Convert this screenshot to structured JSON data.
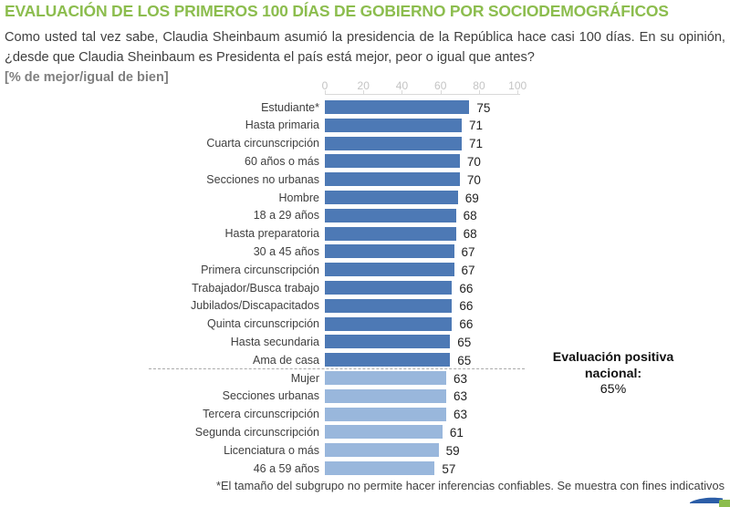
{
  "header": {
    "title": "EVALUACIÓN DE LOS PRIMEROS 100 DÍAS DE GOBIERNO POR SOCIODEMOGRÁFICOS",
    "question": "Como usted tal vez sabe, Claudia Sheinbaum asumió la presidencia de la República hace casi 100 días. En su opinión, ¿desde que Claudia Sheinbaum es Presidenta el país está mejor, peor o igual que antes?",
    "unit_note": "[% de mejor/igual de bien]"
  },
  "chart_data": {
    "type": "bar",
    "orientation": "horizontal",
    "title": "Evaluación de los primeros 100 días de gobierno por sociodemográficos",
    "xlabel": "",
    "ylabel": "",
    "xlim": [
      0,
      100
    ],
    "x_ticks": [
      0,
      20,
      40,
      60,
      80,
      100
    ],
    "grid": false,
    "categories": [
      "Estudiante*",
      "Hasta primaria",
      "Cuarta circunscripción",
      "60 años o más",
      "Secciones no urbanas",
      "Hombre",
      "18 a 29 años",
      "Hasta preparatoria",
      "30 a 45 años",
      "Primera circunscripción",
      "Trabajador/Busca trabajo",
      "Jubilados/Discapacitados",
      "Quinta circunscripción",
      "Hasta secundaria",
      "Ama de casa",
      "Mujer",
      "Secciones urbanas",
      "Tercera circunscripción",
      "Segunda circunscripción",
      "Licenciatura o más",
      "46 a 59 años"
    ],
    "values": [
      75,
      71,
      71,
      70,
      70,
      69,
      68,
      68,
      67,
      67,
      66,
      66,
      66,
      65,
      65,
      63,
      63,
      63,
      61,
      59,
      57
    ],
    "split_index_below_national": 15,
    "colors": {
      "above_or_equal_national": "#4D79B5",
      "below_national": "#99B7DC",
      "title_green": "#8CBD4E",
      "axis_gray": "#D9D9D9"
    },
    "annotation": {
      "label": "Evaluación positiva nacional:",
      "value": "65%"
    },
    "footnote": "*El tamaño del subgrupo no permite hacer inferencias confiables. Se muestra con fines indicativos"
  }
}
